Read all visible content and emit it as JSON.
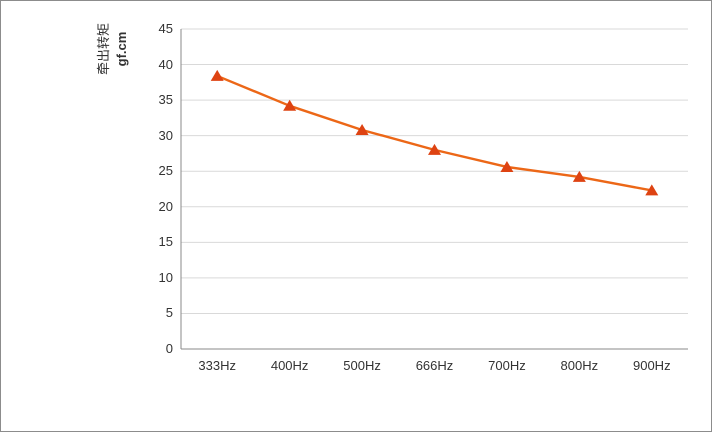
{
  "frame": {
    "background_color": "#ffffff",
    "border_color": "#8c8c8c"
  },
  "chart_data": {
    "type": "line",
    "title": "",
    "categories": [
      "333Hz",
      "400Hz",
      "500Hz",
      "666Hz",
      "700Hz",
      "800Hz",
      "900Hz"
    ],
    "series": [
      {
        "name": "牵出转矩",
        "values": [
          38.4,
          34.2,
          30.8,
          28.0,
          25.6,
          24.2,
          22.3
        ],
        "line_color": "#ec6717",
        "marker": "triangle-up",
        "marker_color": "#de4312"
      }
    ],
    "xlabel": "",
    "ylabel_line1": "牵出转矩",
    "ylabel_line2": "gf.cm",
    "ylim": [
      0,
      45
    ],
    "yticks": [
      0,
      5,
      10,
      15,
      20,
      25,
      30,
      35,
      40,
      45
    ],
    "grid": true,
    "legend": "none",
    "gridline_color": "#d9d9d9",
    "axis_color": "#898989",
    "tick_label_color": "#333333"
  }
}
